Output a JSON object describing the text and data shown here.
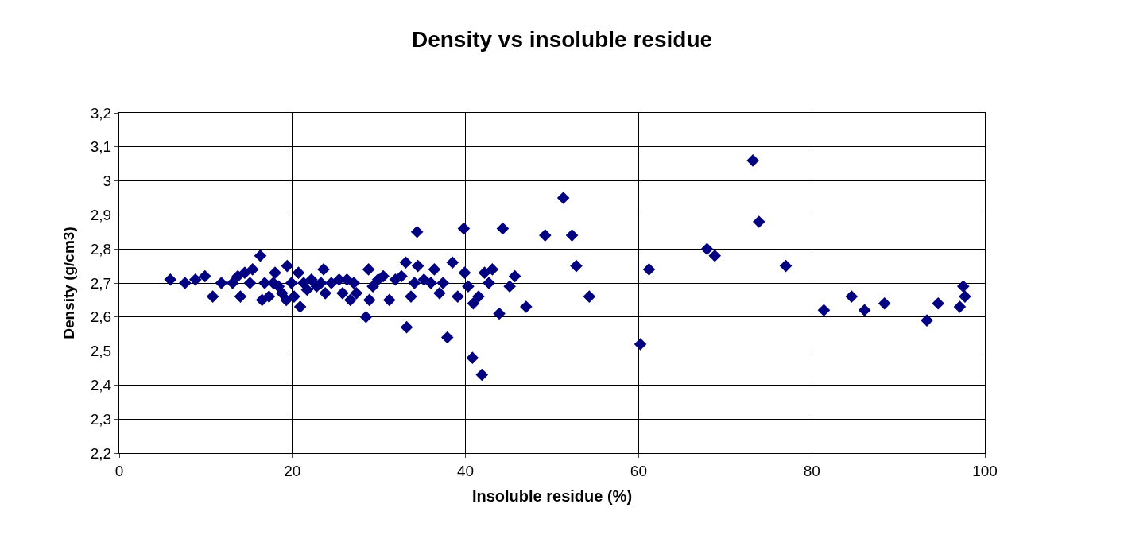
{
  "chart_data": {
    "type": "scatter",
    "title": "Density vs insoluble residue",
    "xlabel": "Insoluble residue (%)",
    "ylabel": "Density (g/cm3)",
    "xlim": [
      0,
      100
    ],
    "xticks": [
      0,
      20,
      40,
      60,
      80,
      100
    ],
    "ylim": [
      2.2,
      3.2
    ],
    "yticks": [
      {
        "value": 2.2,
        "label": "2,2"
      },
      {
        "value": 2.3,
        "label": "2,3"
      },
      {
        "value": 2.4,
        "label": "2,4"
      },
      {
        "value": 2.5,
        "label": "2,5"
      },
      {
        "value": 2.6,
        "label": "2,6"
      },
      {
        "value": 2.7,
        "label": "2,7"
      },
      {
        "value": 2.8,
        "label": "2,8"
      },
      {
        "value": 2.9,
        "label": "2,9"
      },
      {
        "value": 3,
        "label": "3"
      },
      {
        "value": 3.1,
        "label": "3,1"
      },
      {
        "value": 3.2,
        "label": "3,2"
      }
    ],
    "grid": true,
    "marker": "diamond",
    "series": [
      {
        "color": "#000080",
        "x": [
          5.9,
          7.6,
          8.8,
          9.9,
          10.8,
          11.8,
          13.1,
          13.7,
          14.0,
          14.5,
          15.1,
          15.4,
          16.3,
          16.5,
          16.8,
          17.3,
          17.8,
          18.0,
          18.4,
          18.8,
          19.3,
          19.4,
          19.9,
          20.2,
          20.7,
          20.9,
          21.3,
          21.7,
          22.2,
          22.8,
          23.3,
          23.6,
          23.8,
          24.5,
          25.4,
          25.8,
          26.3,
          26.7,
          27.1,
          27.4,
          28.5,
          28.8,
          28.9,
          29.3,
          29.9,
          30.5,
          31.2,
          31.9,
          32.6,
          33.1,
          33.2,
          33.7,
          34.1,
          34.4,
          34.5,
          35.2,
          36.0,
          36.4,
          37.0,
          37.4,
          37.9,
          38.5,
          39.1,
          39.8,
          39.9,
          40.3,
          40.8,
          40.9,
          41.5,
          41.9,
          42.2,
          42.7,
          43.1,
          43.9,
          44.3,
          45.1,
          45.7,
          47.0,
          49.2,
          51.3,
          52.3,
          52.8,
          54.3,
          60.2,
          61.2,
          67.9,
          68.8,
          73.2,
          73.9,
          77.0,
          81.4,
          84.6,
          86.1,
          88.4,
          93.3,
          94.6,
          97.1,
          97.5,
          97.7
        ],
        "values": [
          2.71,
          2.7,
          2.71,
          2.72,
          2.66,
          2.7,
          2.7,
          2.72,
          2.66,
          2.73,
          2.7,
          2.74,
          2.78,
          2.65,
          2.7,
          2.66,
          2.7,
          2.73,
          2.69,
          2.67,
          2.65,
          2.75,
          2.7,
          2.66,
          2.73,
          2.63,
          2.7,
          2.68,
          2.71,
          2.69,
          2.7,
          2.74,
          2.67,
          2.7,
          2.71,
          2.67,
          2.71,
          2.65,
          2.7,
          2.67,
          2.6,
          2.74,
          2.65,
          2.69,
          2.71,
          2.72,
          2.65,
          2.71,
          2.72,
          2.76,
          2.57,
          2.66,
          2.7,
          2.85,
          2.75,
          2.71,
          2.7,
          2.74,
          2.67,
          2.7,
          2.54,
          2.76,
          2.66,
          2.86,
          2.73,
          2.69,
          2.48,
          2.64,
          2.66,
          2.43,
          2.73,
          2.7,
          2.74,
          2.61,
          2.86,
          2.69,
          2.72,
          2.63,
          2.84,
          2.95,
          2.84,
          2.75,
          2.66,
          2.52,
          2.74,
          2.8,
          2.78,
          3.06,
          2.88,
          2.75,
          2.62,
          2.66,
          2.62,
          2.64,
          2.59,
          2.64,
          2.63,
          2.69,
          2.66
        ]
      }
    ]
  }
}
